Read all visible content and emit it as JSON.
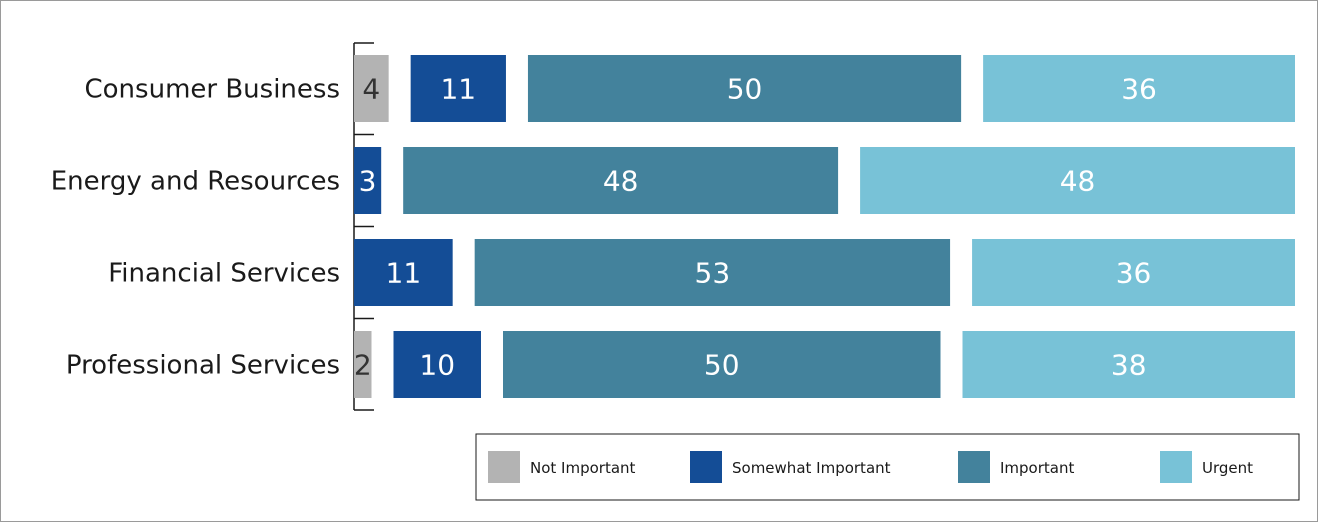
{
  "chart_data": {
    "type": "bar",
    "orientation": "horizontal",
    "stacked": true,
    "categories": [
      "Consumer Business",
      "Energy and Resources",
      "Financial Services",
      "Professional Services"
    ],
    "series": [
      {
        "name": "Not Important",
        "color": "#b3b3b3",
        "values": [
          4,
          0,
          0,
          2
        ]
      },
      {
        "name": "Somewhat Important",
        "color": "#144d96",
        "values": [
          11,
          3,
          11,
          10
        ]
      },
      {
        "name": "Important",
        "color": "#43829c",
        "values": [
          50,
          48,
          53,
          50
        ]
      },
      {
        "name": "Urgent",
        "color": "#78c2d7",
        "values": [
          36,
          48,
          36,
          38
        ]
      }
    ],
    "data_labels": [
      [
        "4",
        "11",
        "50",
        "36"
      ],
      [
        "",
        "3",
        "48",
        "48"
      ],
      [
        "",
        "11",
        "53",
        "36"
      ],
      [
        "2",
        "10",
        "50",
        "38"
      ]
    ],
    "title": "",
    "xlabel": "",
    "ylabel": "",
    "grid": false,
    "legend_position": "bottom-right"
  }
}
